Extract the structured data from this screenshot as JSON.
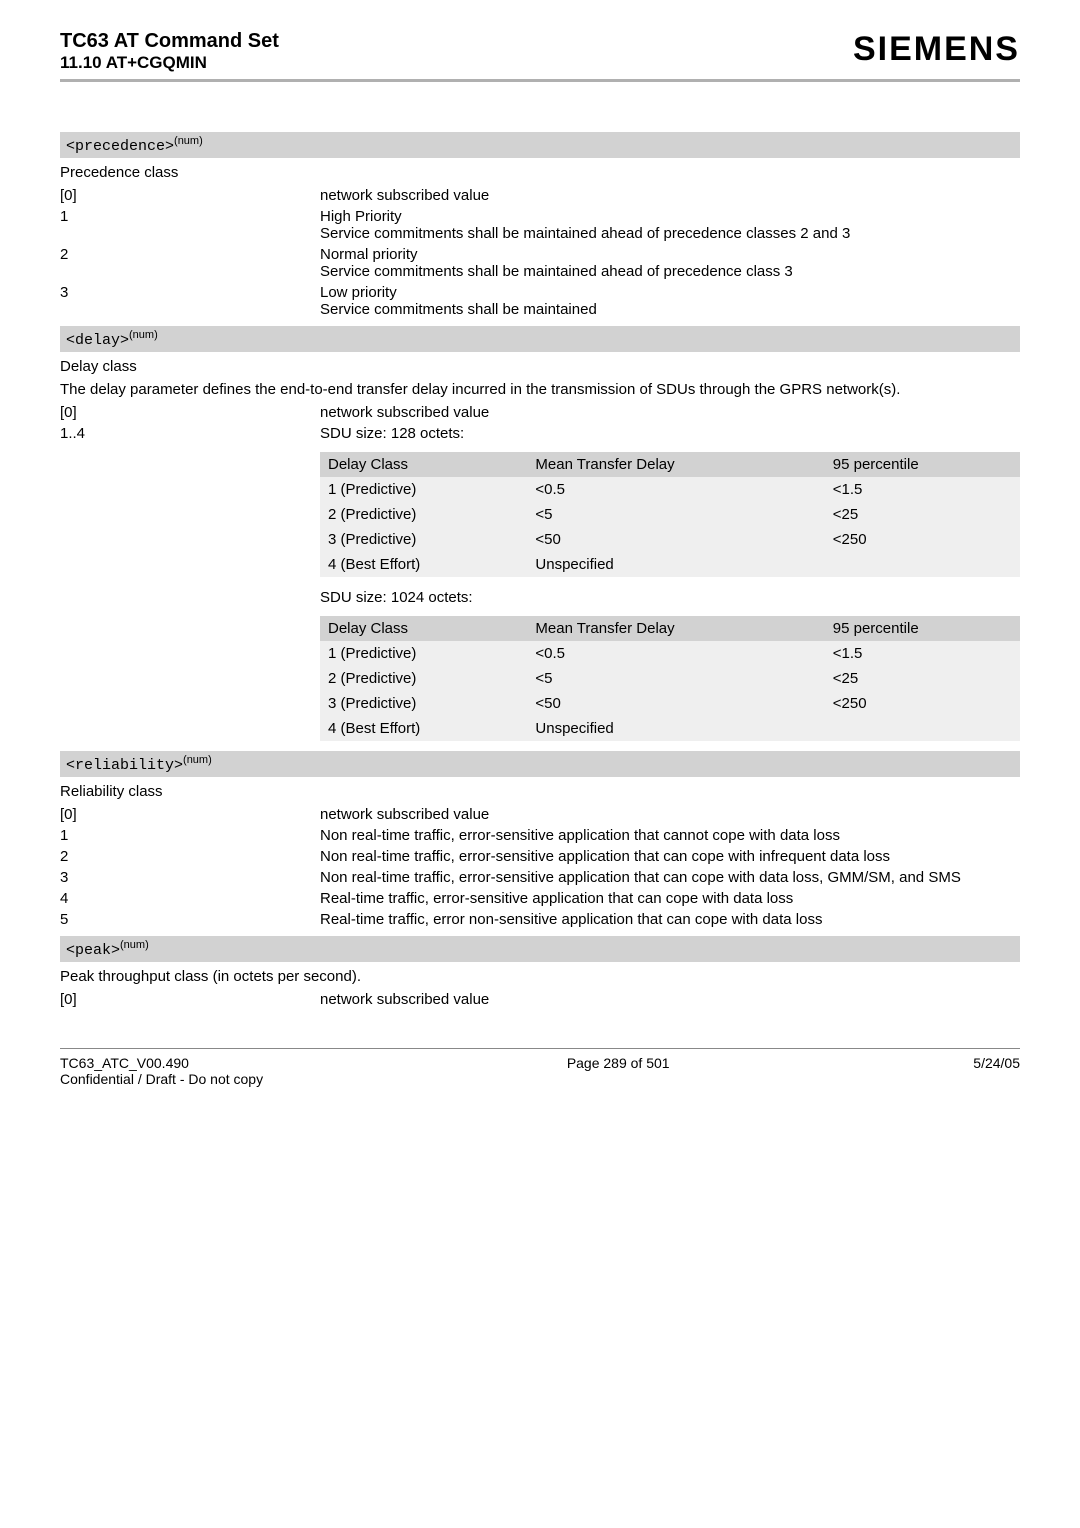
{
  "header": {
    "title_main": "TC63 AT Command Set",
    "title_sub": "11.10 AT+CGQMIN",
    "brand": "SIEMENS"
  },
  "precedence": {
    "param_label": "<precedence>",
    "sup": "(num)",
    "class_label": "Precedence class",
    "rows": [
      {
        "code": "[0]",
        "desc": "network subscribed value"
      },
      {
        "code": "1",
        "desc": "High Priority\nService commitments shall be maintained ahead of precedence classes 2 and 3"
      },
      {
        "code": "2",
        "desc": "Normal priority\nService commitments shall be maintained ahead of precedence class 3"
      },
      {
        "code": "3",
        "desc": "Low priority\nService commitments shall be maintained"
      }
    ]
  },
  "delay": {
    "param_label": "<delay>",
    "sup": "(num)",
    "class_label": "Delay class",
    "paragraph": "The delay parameter defines the end-to-end transfer delay incurred in the transmission of SDUs through the GPRS network(s).",
    "rows": [
      {
        "code": "[0]",
        "desc": "network subscribed value"
      },
      {
        "code": "1..4",
        "desc": "SDU size: 128 octets:"
      }
    ],
    "table1": {
      "headers": [
        "Delay Class",
        "Mean Transfer Delay",
        "95 percentile"
      ],
      "rows": [
        [
          "1 (Predictive)",
          "<0.5",
          "<1.5"
        ],
        [
          "2 (Predictive)",
          "<5",
          "<25"
        ],
        [
          "3 (Predictive)",
          "<50",
          "<250"
        ],
        [
          "4 (Best Effort)",
          "Unspecified",
          ""
        ]
      ]
    },
    "sdu2_caption": "SDU size: 1024 octets:",
    "table2": {
      "headers": [
        "Delay Class",
        "Mean Transfer Delay",
        "95 percentile"
      ],
      "rows": [
        [
          "1 (Predictive)",
          "<0.5",
          "<1.5"
        ],
        [
          "2 (Predictive)",
          "<5",
          "<25"
        ],
        [
          "3 (Predictive)",
          "<50",
          "<250"
        ],
        [
          "4 (Best Effort)",
          "Unspecified",
          ""
        ]
      ]
    }
  },
  "reliability": {
    "param_label": "<reliability>",
    "sup": "(num)",
    "class_label": "Reliability class",
    "rows": [
      {
        "code": "[0]",
        "desc": "network subscribed value"
      },
      {
        "code": "1",
        "desc": "Non real-time traffic, error-sensitive application that cannot cope with data loss"
      },
      {
        "code": "2",
        "desc": "Non real-time traffic, error-sensitive application that can cope with infrequent data loss"
      },
      {
        "code": "3",
        "desc": "Non real-time traffic, error-sensitive application that can cope with data loss, GMM/SM, and SMS"
      },
      {
        "code": "4",
        "desc": "Real-time traffic, error-sensitive application that can cope with data loss"
      },
      {
        "code": "5",
        "desc": "Real-time traffic, error non-sensitive application that can cope with data loss"
      }
    ]
  },
  "peak": {
    "param_label": "<peak>",
    "sup": "(num)",
    "class_label": "Peak throughput class (in octets per second).",
    "rows": [
      {
        "code": "[0]",
        "desc": "network subscribed value"
      }
    ]
  },
  "footer": {
    "left1": "TC63_ATC_V00.490",
    "left2": "Confidential / Draft - Do not copy",
    "center": "Page 289 of 501",
    "right": "5/24/05"
  }
}
